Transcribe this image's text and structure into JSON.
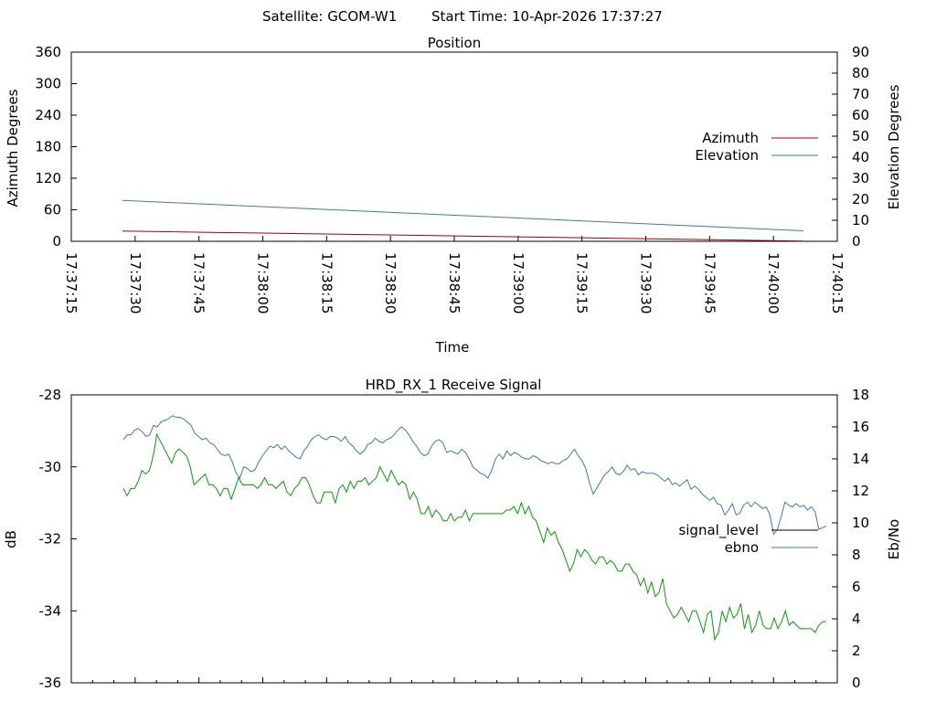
{
  "header": {
    "satellite": "Satellite: GCOM-W1",
    "start_time": "Start Time: 10-Apr-2026 17:37:27"
  },
  "chart_data": [
    {
      "type": "line",
      "title": "Position",
      "xlabel": "Time",
      "ylabel": "Azimuth Degrees",
      "y2label": "Elevation Degrees",
      "x_tick_labels": [
        "17:37:15",
        "17:37:30",
        "17:37:45",
        "17:38:00",
        "17:38:15",
        "17:38:30",
        "17:38:45",
        "17:39:00",
        "17:39:15",
        "17:39:30",
        "17:39:45",
        "17:40:00",
        "17:40:15"
      ],
      "xlim": [
        "17:37:15",
        "17:40:15"
      ],
      "ylim": [
        0,
        360
      ],
      "y2lim": [
        0,
        90
      ],
      "y_ticks": [
        0,
        60,
        120,
        180,
        240,
        300,
        360
      ],
      "y2_ticks": [
        0,
        10,
        20,
        30,
        40,
        50,
        60,
        70,
        80,
        90
      ],
      "legend_position": "right",
      "x": [
        "17:37:27",
        "17:40:07"
      ],
      "series": [
        {
          "name": "Azimuth",
          "axis": "left",
          "color": "#a00000",
          "x": [
            "17:37:27",
            "17:40:07"
          ],
          "values": [
            19.5,
            0.5
          ]
        },
        {
          "name": "Elevation",
          "axis": "right",
          "color": "#3c78b4",
          "x": [
            "17:37:27",
            "17:40:07"
          ],
          "values": [
            19.5,
            5.0
          ]
        }
      ]
    },
    {
      "type": "line",
      "title": "HRD_RX_1 Receive Signal",
      "xlabel": "",
      "ylabel": "dB",
      "y2label": "Eb/No",
      "ylim": [
        -36,
        -28
      ],
      "y2lim": [
        0,
        18
      ],
      "y_ticks": [
        -36,
        -34,
        -32,
        -30,
        -28
      ],
      "y2_ticks": [
        0,
        2,
        4,
        6,
        8,
        10,
        12,
        14,
        16,
        18
      ],
      "xlim": [
        "17:37:15",
        "17:40:15"
      ],
      "legend_position": "right",
      "series": [
        {
          "name": "signal_level",
          "axis": "left",
          "color": "#00a000",
          "values": [
            -30.6,
            -30.8,
            -30.6,
            -30.6,
            -30.4,
            -30.1,
            -30.2,
            -30.1,
            -29.7,
            -29.1,
            -29.3,
            -29.5,
            -29.7,
            -29.9,
            -29.6,
            -29.5,
            -29.6,
            -29.7,
            -30.0,
            -30.5,
            -30.4,
            -30.3,
            -30.2,
            -30.5,
            -30.5,
            -30.6,
            -30.8,
            -30.6,
            -30.6,
            -30.9,
            -30.6,
            -30.3,
            -30.5,
            -30.5,
            -30.5,
            -30.5,
            -30.6,
            -30.5,
            -30.3,
            -30.5,
            -30.5,
            -30.6,
            -30.5,
            -30.4,
            -30.7,
            -30.8,
            -30.6,
            -30.5,
            -30.3,
            -30.3,
            -30.5,
            -30.8,
            -31.0,
            -31.0,
            -30.7,
            -30.7,
            -30.7,
            -31.0,
            -30.6,
            -30.5,
            -30.7,
            -30.4,
            -30.6,
            -30.4,
            -30.4,
            -30.3,
            -30.5,
            -30.4,
            -30.3,
            -30.0,
            -30.2,
            -30.4,
            -30.1,
            -30.3,
            -30.5,
            -30.4,
            -30.5,
            -30.9,
            -30.7,
            -30.9,
            -31.3,
            -31.3,
            -31.1,
            -31.4,
            -31.2,
            -31.3,
            -31.5,
            -31.5,
            -31.3,
            -31.5,
            -31.4,
            -31.4,
            -31.2,
            -31.5,
            -31.3,
            -31.3,
            -31.3,
            -31.3,
            -31.3,
            -31.3,
            -31.3,
            -31.3,
            -31.3,
            -31.2,
            -31.2,
            -31.1,
            -31.3,
            -31.0,
            -31.3,
            -31.1,
            -31.4,
            -31.5,
            -31.8,
            -32.1,
            -31.7,
            -31.9,
            -31.8,
            -32.1,
            -32.3,
            -32.6,
            -32.9,
            -32.7,
            -32.3,
            -32.5,
            -32.3,
            -32.4,
            -32.6,
            -32.7,
            -32.5,
            -32.5,
            -32.7,
            -32.6,
            -32.7,
            -32.9,
            -32.9,
            -32.7,
            -32.7,
            -32.9,
            -33.0,
            -33.3,
            -33.1,
            -33.5,
            -33.2,
            -33.6,
            -33.5,
            -33.1,
            -33.8,
            -34.0,
            -34.2,
            -34.1,
            -33.9,
            -34.1,
            -34.3,
            -34.0,
            -34.0,
            -34.3,
            -34.6,
            -34.1,
            -34.0,
            -34.8,
            -34.6,
            -34.0,
            -34.3,
            -33.9,
            -34.2,
            -34.1,
            -33.8,
            -34.5,
            -34.1,
            -34.6,
            -34.4,
            -34.0,
            -34.4,
            -34.5,
            -34.5,
            -34.2,
            -34.5,
            -34.3,
            -34.0,
            -34.4,
            -34.3,
            -34.4,
            -34.5,
            -34.5,
            -34.5,
            -34.5,
            -34.6,
            -34.4,
            -34.3,
            -34.3
          ]
        },
        {
          "name": "ebno",
          "axis": "right",
          "color": "#3c78b4",
          "values": [
            15.2,
            15.5,
            15.5,
            15.8,
            15.9,
            15.7,
            15.4,
            15.5,
            16.1,
            16.0,
            16.3,
            16.4,
            16.5,
            16.7,
            16.6,
            16.6,
            16.5,
            16.3,
            16.1,
            15.6,
            15.4,
            15.2,
            15.3,
            15.0,
            14.9,
            14.6,
            14.3,
            14.2,
            14.3,
            13.8,
            13.1,
            12.8,
            13.5,
            13.4,
            13.2,
            13.3,
            13.8,
            14.2,
            14.5,
            14.8,
            14.7,
            14.9,
            14.6,
            14.8,
            14.5,
            14.3,
            14.1,
            14.0,
            14.5,
            14.8,
            15.2,
            15.4,
            15.5,
            15.3,
            15.2,
            15.4,
            15.4,
            15.3,
            15.1,
            15.4,
            15.0,
            14.8,
            14.5,
            14.3,
            14.5,
            14.9,
            15.0,
            15.3,
            15.1,
            15.0,
            15.2,
            15.3,
            15.5,
            15.8,
            16.0,
            15.8,
            15.5,
            15.1,
            14.8,
            14.4,
            14.2,
            14.3,
            14.8,
            15.1,
            15.2,
            15.0,
            14.4,
            14.5,
            14.4,
            14.3,
            14.6,
            14.4,
            14.0,
            13.5,
            13.3,
            13.1,
            13.0,
            12.8,
            13.3,
            14.0,
            14.3,
            14.0,
            14.5,
            14.2,
            14.4,
            14.3,
            14.1,
            14.0,
            14.0,
            14.2,
            14.1,
            13.9,
            13.8,
            13.7,
            13.8,
            13.7,
            13.7,
            13.9,
            14.0,
            14.3,
            14.6,
            14.2,
            13.9,
            13.4,
            12.5,
            11.8,
            12.2,
            12.6,
            13.0,
            13.2,
            13.5,
            13.1,
            13.0,
            13.2,
            13.6,
            13.3,
            13.4,
            13.0,
            13.2,
            13.1,
            13.1,
            13.1,
            13.0,
            12.8,
            12.6,
            12.8,
            12.4,
            12.5,
            12.3,
            12.5,
            12.7,
            12.1,
            12.3,
            12.1,
            11.8,
            11.6,
            11.4,
            11.6,
            11.2,
            11.1,
            10.5,
            10.8,
            11.2,
            10.5,
            10.6,
            11.1,
            11.3,
            11.0,
            11.3,
            11.1,
            10.9,
            11.0,
            10.5,
            9.3,
            9.6,
            10.4,
            11.3,
            11.1,
            11.0,
            11.2,
            11.0,
            11.1,
            10.8,
            11.0,
            10.7,
            9.6,
            9.7,
            9.8
          ]
        }
      ]
    }
  ],
  "icons": {}
}
